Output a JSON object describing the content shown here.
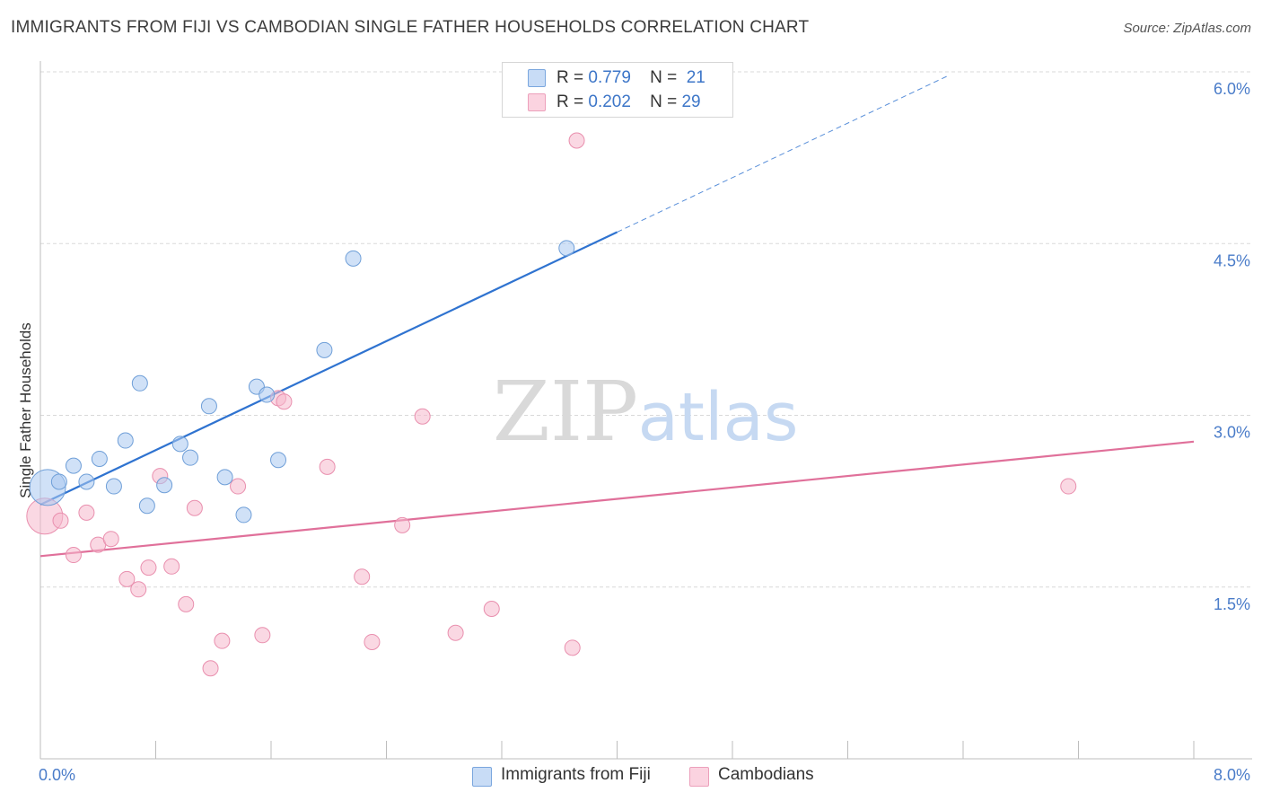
{
  "header": {
    "title": "IMMIGRANTS FROM FIJI VS CAMBODIAN SINGLE FATHER HOUSEHOLDS CORRELATION CHART",
    "source": "Source: ZipAtlas.com"
  },
  "watermark": {
    "zip": "ZIP",
    "atlas": "atlas"
  },
  "legend_top": {
    "rows": [
      {
        "r_label": "R =",
        "r_value": "0.779",
        "n_label": "N =",
        "n_value": "21",
        "color": "#a9c8f0"
      },
      {
        "r_label": "R =",
        "r_value": "0.202",
        "n_label": "N =",
        "n_value": "29",
        "color": "#f6b8cc"
      }
    ]
  },
  "legend_bottom": {
    "fiji": "Immigrants from Fiji",
    "cambodians": "Cambodians"
  },
  "colors": {
    "fiji_fill": "#a9c8f0",
    "fiji_stroke": "#6f9fd8",
    "fiji_line": "#2f73d0",
    "camb_fill": "#f6b8cc",
    "camb_stroke": "#e98fae",
    "camb_line": "#e0709a",
    "grid": "#d9d9d9",
    "tick_text": "#4a7cc9"
  },
  "chart_data": {
    "type": "scatter",
    "title": "IMMIGRANTS FROM FIJI VS CAMBODIAN SINGLE FATHER HOUSEHOLDS CORRELATION CHART",
    "xlabel": "",
    "ylabel": "Single Father Households",
    "xlim": [
      0,
      8.0
    ],
    "ylim": [
      0,
      6.0
    ],
    "x_tick_labels": [
      "0.0%",
      "8.0%"
    ],
    "y_ticks": [
      {
        "value": 1.5,
        "label": "1.5%"
      },
      {
        "value": 3.0,
        "label": "3.0%"
      },
      {
        "value": 4.5,
        "label": "4.5%"
      },
      {
        "value": 6.0,
        "label": "6.0%"
      }
    ],
    "grid": true,
    "legend_position": "top-center",
    "series": [
      {
        "name": "Immigrants from Fiji",
        "r": 0.779,
        "n": 21,
        "points": [
          {
            "x": 0.05,
            "y": 2.37,
            "big": true
          },
          {
            "x": 0.13,
            "y": 2.42
          },
          {
            "x": 0.23,
            "y": 2.56
          },
          {
            "x": 0.32,
            "y": 2.42
          },
          {
            "x": 0.41,
            "y": 2.62
          },
          {
            "x": 0.51,
            "y": 2.38
          },
          {
            "x": 0.59,
            "y": 2.78
          },
          {
            "x": 0.69,
            "y": 3.28
          },
          {
            "x": 0.74,
            "y": 2.21
          },
          {
            "x": 0.86,
            "y": 2.39
          },
          {
            "x": 0.97,
            "y": 2.75
          },
          {
            "x": 1.04,
            "y": 2.63
          },
          {
            "x": 1.17,
            "y": 3.08
          },
          {
            "x": 1.28,
            "y": 2.46
          },
          {
            "x": 1.41,
            "y": 2.13
          },
          {
            "x": 1.5,
            "y": 3.25
          },
          {
            "x": 1.57,
            "y": 3.18
          },
          {
            "x": 1.65,
            "y": 2.61
          },
          {
            "x": 1.97,
            "y": 3.57
          },
          {
            "x": 2.17,
            "y": 4.37
          },
          {
            "x": 3.65,
            "y": 4.46
          }
        ],
        "trend": {
          "x0": 0.0,
          "y0": 2.22,
          "x1": 4.0,
          "y1": 4.6,
          "dashed_to_x": 6.3
        }
      },
      {
        "name": "Cambodians",
        "r": 0.202,
        "n": 29,
        "points": [
          {
            "x": 0.03,
            "y": 2.12,
            "big": true
          },
          {
            "x": 0.14,
            "y": 2.08
          },
          {
            "x": 0.23,
            "y": 1.78
          },
          {
            "x": 0.32,
            "y": 2.15
          },
          {
            "x": 0.4,
            "y": 1.87
          },
          {
            "x": 0.49,
            "y": 1.92
          },
          {
            "x": 0.6,
            "y": 1.57
          },
          {
            "x": 0.68,
            "y": 1.48
          },
          {
            "x": 0.75,
            "y": 1.67
          },
          {
            "x": 0.83,
            "y": 2.47
          },
          {
            "x": 0.91,
            "y": 1.68
          },
          {
            "x": 1.01,
            "y": 1.35
          },
          {
            "x": 1.07,
            "y": 2.19
          },
          {
            "x": 1.18,
            "y": 0.79
          },
          {
            "x": 1.26,
            "y": 1.03
          },
          {
            "x": 1.37,
            "y": 2.38
          },
          {
            "x": 1.54,
            "y": 1.08
          },
          {
            "x": 1.65,
            "y": 3.15
          },
          {
            "x": 1.69,
            "y": 3.12
          },
          {
            "x": 1.99,
            "y": 2.55
          },
          {
            "x": 2.23,
            "y": 1.59
          },
          {
            "x": 2.3,
            "y": 1.02
          },
          {
            "x": 2.51,
            "y": 2.04
          },
          {
            "x": 2.65,
            "y": 2.99
          },
          {
            "x": 2.88,
            "y": 1.1
          },
          {
            "x": 3.13,
            "y": 1.31
          },
          {
            "x": 3.69,
            "y": 0.97
          },
          {
            "x": 3.72,
            "y": 5.4
          },
          {
            "x": 7.13,
            "y": 2.38
          }
        ],
        "trend": {
          "x0": 0.0,
          "y0": 1.77,
          "x1": 8.0,
          "y1": 2.77
        }
      }
    ]
  }
}
